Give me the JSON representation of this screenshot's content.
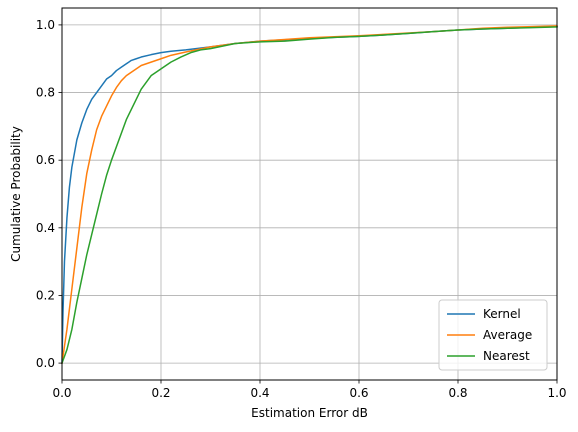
{
  "chart_data": {
    "type": "line",
    "title": "",
    "xlabel": "Estimation Error dB",
    "ylabel": "Cumulative Probability",
    "xlim": [
      0,
      1.0
    ],
    "ylim": [
      -0.05,
      1.05
    ],
    "xticks": [
      0.0,
      0.2,
      0.4,
      0.6,
      0.8,
      1.0
    ],
    "xtick_labels": [
      "0.0",
      "0.2",
      "0.4",
      "0.6",
      "0.8",
      "1.0"
    ],
    "yticks": [
      0.0,
      0.2,
      0.4,
      0.6,
      0.8,
      1.0
    ],
    "ytick_labels": [
      "0.0",
      "0.2",
      "0.4",
      "0.6",
      "0.8",
      "1.0"
    ],
    "grid": true,
    "legend_position": "bottom-right",
    "series": [
      {
        "name": "Kernel",
        "color": "#1f77b4",
        "x": [
          0.0,
          0.002,
          0.005,
          0.01,
          0.015,
          0.02,
          0.03,
          0.04,
          0.05,
          0.06,
          0.07,
          0.08,
          0.09,
          0.1,
          0.11,
          0.12,
          0.13,
          0.14,
          0.15,
          0.16,
          0.18,
          0.2,
          0.22,
          0.25,
          0.3,
          0.35,
          0.4,
          0.45,
          0.5,
          0.55,
          0.6,
          0.65,
          0.7,
          0.75,
          0.8,
          0.85,
          0.9,
          0.95,
          1.0
        ],
        "y": [
          0.0,
          0.15,
          0.3,
          0.43,
          0.52,
          0.58,
          0.66,
          0.71,
          0.75,
          0.78,
          0.8,
          0.82,
          0.84,
          0.85,
          0.865,
          0.875,
          0.885,
          0.895,
          0.9,
          0.905,
          0.912,
          0.918,
          0.922,
          0.926,
          0.935,
          0.945,
          0.952,
          0.956,
          0.96,
          0.963,
          0.966,
          0.97,
          0.975,
          0.98,
          0.985,
          0.988,
          0.99,
          0.993,
          0.995
        ]
      },
      {
        "name": "Average",
        "color": "#ff7f0e",
        "x": [
          0.0,
          0.005,
          0.01,
          0.02,
          0.03,
          0.04,
          0.05,
          0.06,
          0.07,
          0.08,
          0.09,
          0.1,
          0.11,
          0.12,
          0.13,
          0.14,
          0.15,
          0.16,
          0.18,
          0.2,
          0.22,
          0.25,
          0.3,
          0.35,
          0.4,
          0.45,
          0.5,
          0.55,
          0.6,
          0.65,
          0.7,
          0.75,
          0.8,
          0.85,
          0.9,
          0.95,
          1.0
        ],
        "y": [
          0.0,
          0.05,
          0.1,
          0.22,
          0.34,
          0.46,
          0.56,
          0.63,
          0.69,
          0.73,
          0.76,
          0.79,
          0.815,
          0.835,
          0.85,
          0.86,
          0.87,
          0.88,
          0.89,
          0.9,
          0.91,
          0.92,
          0.935,
          0.945,
          0.952,
          0.957,
          0.962,
          0.965,
          0.968,
          0.972,
          0.976,
          0.98,
          0.985,
          0.99,
          0.993,
          0.995,
          0.997
        ]
      },
      {
        "name": "Nearest",
        "color": "#2ca02c",
        "x": [
          0.0,
          0.01,
          0.02,
          0.03,
          0.04,
          0.05,
          0.06,
          0.07,
          0.08,
          0.09,
          0.1,
          0.11,
          0.12,
          0.13,
          0.14,
          0.15,
          0.16,
          0.17,
          0.18,
          0.19,
          0.2,
          0.22,
          0.24,
          0.26,
          0.28,
          0.3,
          0.35,
          0.4,
          0.45,
          0.5,
          0.55,
          0.6,
          0.65,
          0.7,
          0.75,
          0.8,
          0.85,
          0.9,
          0.95,
          1.0
        ],
        "y": [
          0.0,
          0.04,
          0.1,
          0.18,
          0.25,
          0.32,
          0.38,
          0.44,
          0.5,
          0.555,
          0.6,
          0.64,
          0.68,
          0.72,
          0.75,
          0.78,
          0.81,
          0.83,
          0.85,
          0.86,
          0.87,
          0.89,
          0.905,
          0.918,
          0.926,
          0.93,
          0.945,
          0.95,
          0.952,
          0.958,
          0.963,
          0.966,
          0.97,
          0.975,
          0.98,
          0.985,
          0.988,
          0.99,
          0.992,
          0.994
        ]
      }
    ]
  }
}
